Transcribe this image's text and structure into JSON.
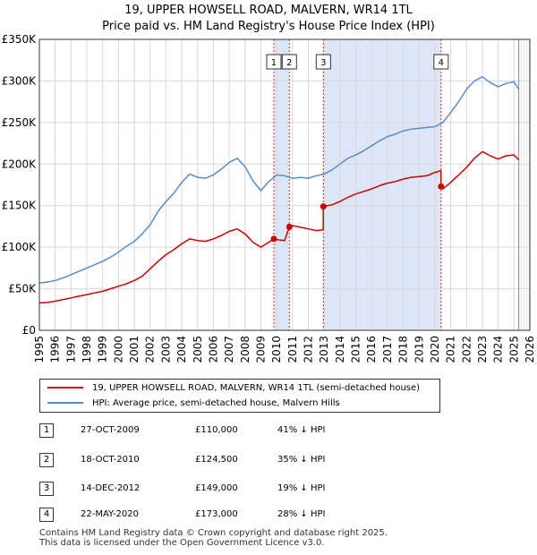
{
  "page": {
    "title_line1": "19, UPPER HOWSELL ROAD, MALVERN, WR14 1TL",
    "title_line2": "Price paid vs. HM Land Registry's House Price Index (HPI)"
  },
  "colors": {
    "property_line": "#cc0000",
    "hpi_line": "#5b8bc7",
    "shade": "#dde6f6",
    "grid": "#d8d8d8"
  },
  "chart_data": {
    "type": "line",
    "title": "Price paid vs. HM Land Registry's House Price Index (HPI)",
    "xlabel": "",
    "ylabel": "",
    "xlim": [
      1995,
      2026
    ],
    "ylim": [
      0,
      350000
    ],
    "x_ticks": [
      "1995",
      "1996",
      "1997",
      "1998",
      "1999",
      "2000",
      "2001",
      "2002",
      "2003",
      "2004",
      "2005",
      "2006",
      "2007",
      "2008",
      "2009",
      "2010",
      "2011",
      "2012",
      "2013",
      "2014",
      "2015",
      "2016",
      "2017",
      "2018",
      "2019",
      "2020",
      "2021",
      "2022",
      "2023",
      "2024",
      "2025",
      "2026"
    ],
    "y_ticks": [
      {
        "value": 0,
        "label": "£0"
      },
      {
        "value": 50000,
        "label": "£50K"
      },
      {
        "value": 100000,
        "label": "£100K"
      },
      {
        "value": 150000,
        "label": "£150K"
      },
      {
        "value": 200000,
        "label": "£200K"
      },
      {
        "value": 250000,
        "label": "£250K"
      },
      {
        "value": 300000,
        "label": "£300K"
      },
      {
        "value": 350000,
        "label": "£350K"
      }
    ],
    "shaded_ranges": [
      [
        2009.82,
        2010.8
      ],
      [
        2012.95,
        2020.39
      ]
    ],
    "projection_start": 2025.3,
    "series": [
      {
        "name": "HPI: Average price, semi-detached house, Malvern Hills",
        "color": "#5b8bc7",
        "x": [
          1995,
          1995.5,
          1996,
          1996.5,
          1997,
          1997.5,
          1998,
          1998.5,
          1999,
          1999.5,
          2000,
          2000.5,
          2001,
          2001.5,
          2002,
          2002.5,
          2003,
          2003.5,
          2004,
          2004.5,
          2005,
          2005.5,
          2006,
          2006.5,
          2007,
          2007.5,
          2008,
          2008.5,
          2009,
          2009.5,
          2010,
          2010.5,
          2011,
          2011.5,
          2012,
          2012.5,
          2013,
          2013.5,
          2014,
          2014.5,
          2015,
          2015.5,
          2016,
          2016.5,
          2017,
          2017.5,
          2018,
          2018.5,
          2019,
          2019.5,
          2020,
          2020.5,
          2021,
          2021.5,
          2022,
          2022.5,
          2023,
          2023.5,
          2024,
          2024.5,
          2025,
          2025.3
        ],
        "values": [
          57000,
          58000,
          60000,
          63000,
          67000,
          71000,
          75000,
          79000,
          83000,
          88000,
          94000,
          101000,
          107000,
          116000,
          127000,
          143000,
          155000,
          165000,
          178000,
          188000,
          184000,
          183000,
          187000,
          194000,
          202000,
          207000,
          197000,
          180000,
          168000,
          179000,
          187000,
          186000,
          183000,
          184000,
          183000,
          186000,
          188000,
          193000,
          200000,
          207000,
          211000,
          216000,
          222000,
          228000,
          233000,
          236000,
          240000,
          242000,
          243000,
          244000,
          245000,
          250000,
          262000,
          275000,
          290000,
          300000,
          305000,
          298000,
          293000,
          297000,
          299000,
          290000
        ]
      },
      {
        "name": "19, UPPER HOWSELL ROAD, MALVERN, WR14 1TL (semi-detached house)",
        "color": "#cc0000",
        "x": [
          1995,
          1995.5,
          1996,
          1996.5,
          1997,
          1997.5,
          1998,
          1998.5,
          1999,
          1999.5,
          2000,
          2000.5,
          2001,
          2001.5,
          2002,
          2002.5,
          2003,
          2003.5,
          2004,
          2004.5,
          2005,
          2005.5,
          2006,
          2006.5,
          2007,
          2007.5,
          2008,
          2008.5,
          2009,
          2009.5,
          2009.82,
          2010,
          2010.5,
          2010.8,
          2011,
          2011.5,
          2012,
          2012.5,
          2012.94,
          2012.95,
          2013.5,
          2014,
          2014.5,
          2015,
          2015.5,
          2016,
          2016.5,
          2017,
          2017.5,
          2018,
          2018.5,
          2019,
          2019.5,
          2020,
          2020.38,
          2020.39,
          2020.5,
          2021,
          2021.5,
          2022,
          2022.5,
          2023,
          2023.5,
          2024,
          2024.5,
          2025,
          2025.3
        ],
        "values": [
          33000,
          33500,
          35000,
          37000,
          39000,
          41000,
          43000,
          45000,
          47000,
          50000,
          53000,
          56000,
          60000,
          65000,
          74000,
          83000,
          91000,
          97000,
          104000,
          110000,
          108000,
          107000,
          110000,
          114000,
          119000,
          122000,
          116000,
          106000,
          100000,
          106000,
          110000,
          109000,
          108000,
          124500,
          126000,
          124000,
          122000,
          120000,
          121000,
          149000,
          151000,
          155000,
          160000,
          164000,
          167000,
          170000,
          174000,
          177000,
          179000,
          182000,
          184000,
          185000,
          186000,
          190000,
          192000,
          173000,
          170000,
          178000,
          187000,
          196000,
          207000,
          215000,
          210000,
          206000,
          210000,
          211000,
          205000
        ]
      }
    ],
    "sales": [
      {
        "label": "1",
        "x": 2009.82,
        "value": 110000
      },
      {
        "label": "2",
        "x": 2010.8,
        "value": 124500
      },
      {
        "label": "3",
        "x": 2012.95,
        "value": 149000
      },
      {
        "label": "4",
        "x": 2020.39,
        "value": 173000
      }
    ]
  },
  "legend": {
    "property": "19, UPPER HOWSELL ROAD, MALVERN, WR14 1TL (semi-detached house)",
    "hpi": "HPI: Average price, semi-detached house, Malvern Hills"
  },
  "transactions": [
    {
      "num": "1",
      "date": "27-OCT-2009",
      "price": "£110,000",
      "hpi": "41% ↓ HPI"
    },
    {
      "num": "2",
      "date": "18-OCT-2010",
      "price": "£124,500",
      "hpi": "35% ↓ HPI"
    },
    {
      "num": "3",
      "date": "14-DEC-2012",
      "price": "£149,000",
      "hpi": "19% ↓ HPI"
    },
    {
      "num": "4",
      "date": "22-MAY-2020",
      "price": "£173,000",
      "hpi": "28% ↓ HPI"
    }
  ],
  "footer": {
    "line1": "Contains HM Land Registry data © Crown copyright and database right 2025.",
    "line2": "This data is licensed under the Open Government Licence v3.0."
  }
}
